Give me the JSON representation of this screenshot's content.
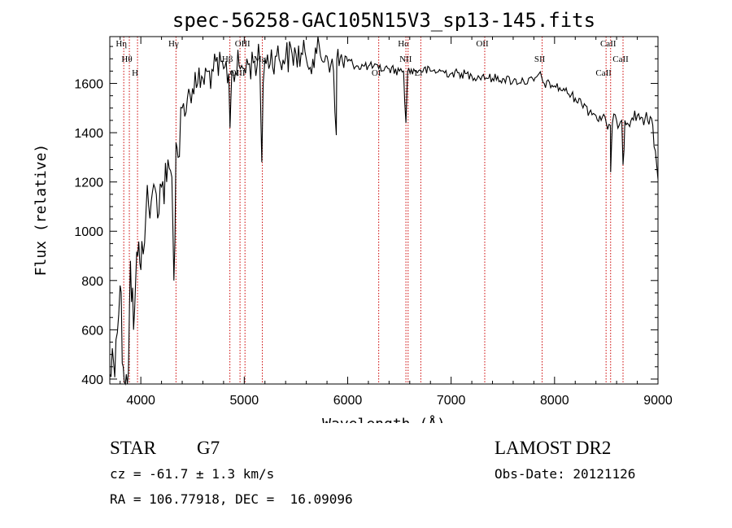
{
  "chart_data": {
    "type": "line",
    "title": "spec-56258-GAC105N15V3_sp13-145.fits",
    "xlabel": "Wavelength (Å)",
    "ylabel": "Flux (relative)",
    "xlim": [
      3700,
      9000
    ],
    "ylim": [
      380,
      1790
    ],
    "x_ticks": [
      4000,
      5000,
      6000,
      7000,
      8000,
      9000
    ],
    "y_ticks": [
      400,
      600,
      800,
      1000,
      1200,
      1400,
      1600
    ],
    "grid": false,
    "line_color": "#000000",
    "marker_color": "#cc0000",
    "series": [
      {
        "x": [
          3700,
          3760,
          3800,
          3830,
          3860,
          3880,
          3900,
          3930,
          3950,
          3970,
          3990,
          4010,
          4050,
          4100,
          4150,
          4200,
          4250,
          4300,
          4320,
          4340,
          4360,
          4400,
          4450,
          4500,
          4550,
          4600,
          4700,
          4800,
          4850,
          4862,
          4880,
          4950,
          5000,
          5050,
          5100,
          5150,
          5170,
          5183,
          5200,
          5300,
          5400,
          5500,
          5600,
          5700,
          5800,
          5850,
          5890,
          5895,
          5950,
          6000,
          6100,
          6200,
          6300,
          6400,
          6500,
          6540,
          6563,
          6580,
          6650,
          6700,
          6800,
          6900,
          7000,
          7100,
          7200,
          7300,
          7400,
          7500,
          7600,
          7700,
          7800,
          7850,
          7900,
          8000,
          8100,
          8200,
          8300,
          8400,
          8450,
          8500,
          8540,
          8542,
          8560,
          8600,
          8650,
          8662,
          8680,
          8750,
          8800,
          8850,
          8900,
          8950,
          9000
        ],
        "y": [
          420,
          560,
          780,
          450,
          420,
          430,
          880,
          600,
          800,
          900,
          870,
          960,
          1080,
          1120,
          1150,
          1180,
          1200,
          1220,
          800,
          1360,
          1300,
          1500,
          1540,
          1580,
          1600,
          1620,
          1650,
          1660,
          1640,
          1420,
          1650,
          1670,
          1660,
          1680,
          1690,
          1690,
          1280,
          1600,
          1700,
          1710,
          1705,
          1720,
          1700,
          1720,
          1710,
          1700,
          1390,
          1700,
          1690,
          1690,
          1670,
          1670,
          1660,
          1660,
          1650,
          1650,
          1440,
          1650,
          1650,
          1655,
          1650,
          1650,
          1640,
          1640,
          1630,
          1630,
          1620,
          1620,
          1610,
          1610,
          1610,
          1640,
          1600,
          1590,
          1570,
          1540,
          1510,
          1470,
          1450,
          1440,
          1430,
          1240,
          1440,
          1450,
          1450,
          1270,
          1450,
          1460,
          1470,
          1460,
          1450,
          1430,
          1210
        ]
      }
    ],
    "line_markers": [
      {
        "x": 3835,
        "label": "Hη"
      },
      {
        "x": 3889,
        "label": "Hθ"
      },
      {
        "x": 3968,
        "label": "H"
      },
      {
        "x": 4340,
        "label": "Hγ"
      },
      {
        "x": 4861,
        "label": "Hβ"
      },
      {
        "x": 4959,
        "label": "OIII"
      },
      {
        "x": 5007,
        "label": "OIII"
      },
      {
        "x": 5175,
        "label": "Mg"
      },
      {
        "x": 6300,
        "label": "OI"
      },
      {
        "x": 6563,
        "label": "Hα"
      },
      {
        "x": 6584,
        "label": "NII"
      },
      {
        "x": 6707,
        "label": "Li"
      },
      {
        "x": 7325,
        "label": "OII"
      },
      {
        "x": 7880,
        "label": "SII"
      },
      {
        "x": 8498,
        "label": "CaII"
      },
      {
        "x": 8542,
        "label": "CaII"
      },
      {
        "x": 8662,
        "label": "CaII"
      }
    ]
  },
  "info": {
    "object_class": "STAR",
    "subclass": "G7",
    "redshift": "cz = -61.7 ± 1.3 km/s",
    "coords": "RA = 106.77918, DEC =  16.09096",
    "survey": "LAMOST DR2",
    "obs_date": "Obs-Date: 20121126"
  }
}
